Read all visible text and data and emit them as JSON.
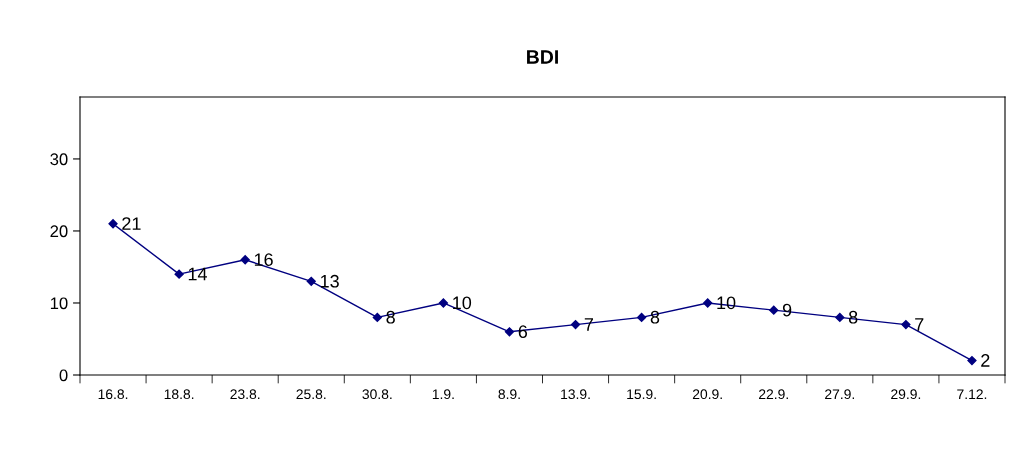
{
  "chart_data": {
    "type": "line",
    "title": "BDI",
    "categories": [
      "16.8.",
      "18.8.",
      "23.8.",
      "25.8.",
      "30.8.",
      "1.9.",
      "8.9.",
      "13.9.",
      "15.9.",
      "20.9.",
      "22.9.",
      "27.9.",
      "29.9.",
      "7.12."
    ],
    "series": [
      {
        "color": "#000080",
        "values": [
          21,
          14,
          16,
          13,
          8,
          10,
          6,
          7,
          8,
          10,
          9,
          8,
          7,
          2
        ]
      }
    ],
    "ylim": [
      0,
      38.6
    ],
    "yticks": [
      0,
      10,
      20,
      30
    ],
    "marker": "diamond",
    "line_style": "solid",
    "data_labels": true,
    "grid": false,
    "legend": false
  }
}
